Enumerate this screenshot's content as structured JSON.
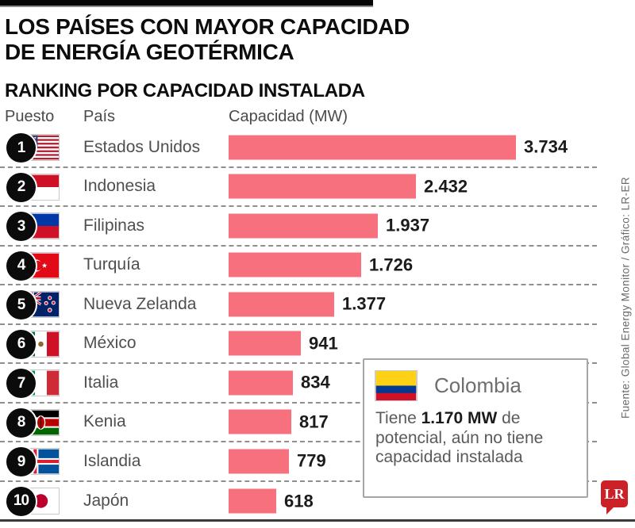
{
  "header": {
    "title_line1": "LOS PAÍSES CON MAYOR CAPACIDAD",
    "title_line2": "DE ENERGÍA GEOTÉRMICA",
    "subtitle": "RANKING POR CAPACIDAD INSTALADA"
  },
  "table": {
    "col_rank": "Puesto",
    "col_country": "País",
    "col_capacity": "Capacidad (MW)"
  },
  "chart_data": {
    "type": "bar",
    "orientation": "horizontal",
    "title": "RANKING POR CAPACIDAD INSTALADA",
    "xlabel": "Capacidad (MW)",
    "xlim": [
      0,
      3734
    ],
    "grid": false,
    "legend": "none",
    "ranks": [
      1,
      2,
      3,
      4,
      5,
      6,
      7,
      8,
      9,
      10
    ],
    "categories": [
      "Estados Unidos",
      "Indonesia",
      "Filipinas",
      "Turquía",
      "Nueva Zelanda",
      "México",
      "Italia",
      "Kenia",
      "Islandia",
      "Japón"
    ],
    "values": [
      3734,
      2432,
      1937,
      1726,
      1377,
      941,
      834,
      817,
      779,
      618
    ],
    "value_labels": [
      "3.734",
      "2.432",
      "1.937",
      "1.726",
      "1.377",
      "941",
      "834",
      "817",
      "779",
      "618"
    ],
    "flags": [
      "us",
      "id",
      "ph",
      "tr",
      "nz",
      "mx",
      "it",
      "ke",
      "is",
      "jp"
    ],
    "bar_color": "#F7707E"
  },
  "callout": {
    "country": "Colombia",
    "flag": "co",
    "text_before": "Tiene ",
    "text_bold": "1.170 MW",
    "text_after": " de potencial,  aún no tiene capacidad instalada"
  },
  "footer": {
    "source": "Fuente: Global Energy Monitor / Gráfico: LR-ER",
    "logo": "LR"
  },
  "colors": {
    "bar": "#F7707E",
    "logo_red": "#CC2127",
    "badge_black": "#0b0b0b"
  }
}
